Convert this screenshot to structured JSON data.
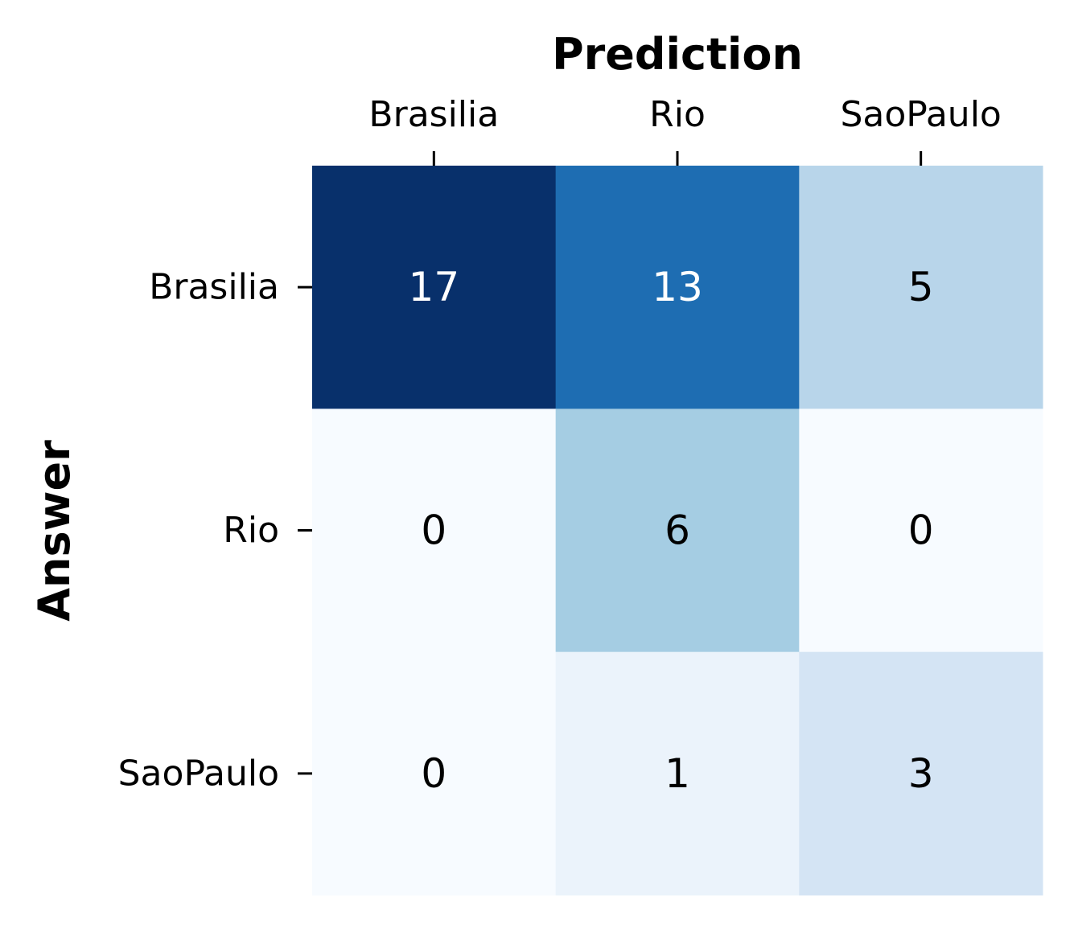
{
  "chart_data": {
    "type": "heatmap",
    "title": "",
    "xlabel": "Prediction",
    "ylabel": "Answer",
    "x_categories": [
      "Brasilia",
      "Rio",
      "SaoPaulo"
    ],
    "y_categories": [
      "Brasilia",
      "Rio",
      "SaoPaulo"
    ],
    "values": [
      [
        17,
        13,
        5
      ],
      [
        0,
        6,
        0
      ],
      [
        0,
        1,
        3
      ]
    ],
    "x_axis_position": "top",
    "colormap": "Blues",
    "color_range": [
      0,
      17
    ],
    "colorbar": false,
    "grid": false
  }
}
